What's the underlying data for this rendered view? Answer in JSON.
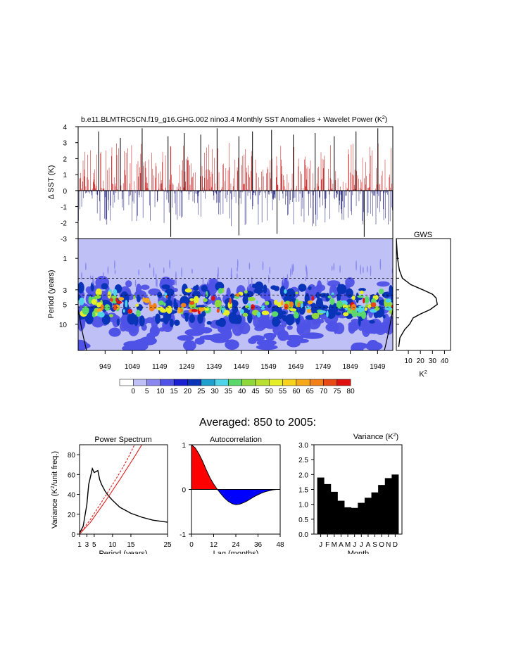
{
  "title": "b.e11.BLMTRC5CN.f19_g16.GHG.002 nino3.4 Monthly SST Anomalies + Wavelet Power (K",
  "title_sup": "2",
  "title_end": ")",
  "chart_data": [
    {
      "id": "sst-timeseries",
      "type": "bar",
      "ylabel": "Δ SST (K)",
      "ylim": [
        -3,
        4
      ],
      "yticks": [
        "4",
        "3",
        "2",
        "1",
        "0",
        "-1",
        "-2",
        "-3"
      ],
      "x_range_years": [
        850,
        2005
      ],
      "colors": {
        "positive": "#c82020",
        "negative": "#202080"
      },
      "peaks": [
        {
          "year": 925,
          "value": 3.7
        },
        {
          "year": 1005,
          "value": 3.3
        },
        {
          "year": 1085,
          "value": 3.9
        },
        {
          "year": 1180,
          "value": 3.4
        },
        {
          "year": 1240,
          "value": 3.6
        },
        {
          "year": 1300,
          "value": 3.5
        },
        {
          "year": 1360,
          "value": 3.9
        },
        {
          "year": 1440,
          "value": 3.4
        },
        {
          "year": 1490,
          "value": 3.7
        },
        {
          "year": 1560,
          "value": 3.8
        },
        {
          "year": 1640,
          "value": 3.5
        },
        {
          "year": 1720,
          "value": 3.6
        },
        {
          "year": 1790,
          "value": 3.4
        },
        {
          "year": 1870,
          "value": 3.7
        },
        {
          "year": 1950,
          "value": 3.9
        },
        {
          "year": 1190,
          "value": -2.9
        },
        {
          "year": 1440,
          "value": -2.8
        },
        {
          "year": 1580,
          "value": -2.7
        },
        {
          "year": 1900,
          "value": -2.9
        }
      ]
    },
    {
      "id": "wavelet-power",
      "type": "heatmap",
      "ylabel": "Period (years)",
      "yticks": [
        "1",
        "3",
        "5",
        "10"
      ],
      "xticks": [
        "949",
        "1049",
        "1149",
        "1249",
        "1349",
        "1449",
        "1549",
        "1649",
        "1749",
        "1849",
        "1949"
      ],
      "colorbar_labels": [
        "0",
        "5",
        "10",
        "15",
        "20",
        "25",
        "30",
        "35",
        "40",
        "45",
        "50",
        "55",
        "60",
        "65",
        "70",
        "75",
        "80"
      ],
      "colorbar_colors": [
        "#ffffff",
        "#bfc0f5",
        "#8a88f0",
        "#4f52e6",
        "#1a1fd0",
        "#0a34b8",
        "#1f9fcf",
        "#4fd3e8",
        "#5bd86a",
        "#8fd83a",
        "#b8e030",
        "#e6ee28",
        "#f7d21e",
        "#f6a81a",
        "#f2801a",
        "#e84a16",
        "#e00f10"
      ],
      "band_period_years": [
        3,
        7
      ],
      "peak_period_years": 5
    },
    {
      "id": "global-wavelet-spectrum",
      "type": "line",
      "title": "GWS",
      "xlabel": "K",
      "xlabel_sup": "2",
      "xticks": [
        "10",
        "20",
        "30",
        "40"
      ],
      "xlim": [
        0,
        45
      ],
      "points": [
        {
          "period": 0.5,
          "power": 0
        },
        {
          "period": 1,
          "power": 1
        },
        {
          "period": 1.5,
          "power": 2.5
        },
        {
          "period": 2,
          "power": 5
        },
        {
          "period": 2.5,
          "power": 12
        },
        {
          "period": 3,
          "power": 22
        },
        {
          "period": 3.5,
          "power": 30
        },
        {
          "period": 4,
          "power": 33
        },
        {
          "period": 5,
          "power": 34
        },
        {
          "period": 6,
          "power": 28
        },
        {
          "period": 7,
          "power": 20
        },
        {
          "period": 8,
          "power": 14
        },
        {
          "period": 10,
          "power": 11
        },
        {
          "period": 12,
          "power": 7
        },
        {
          "period": 16,
          "power": 3
        },
        {
          "period": 22,
          "power": 2
        }
      ]
    },
    {
      "id": "power-spectrum",
      "type": "line",
      "title": "Power Spectrum",
      "xlabel": "Period (years)",
      "ylabel": "Variance (K",
      "ylabel_sup": "2",
      "ylabel_end": "/unit freq.)",
      "xticks": [
        "1",
        "3",
        "5",
        "10",
        "15",
        "25"
      ],
      "yticks": [
        "0",
        "20",
        "40",
        "60",
        "80"
      ],
      "xlim": [
        1,
        25
      ],
      "ylim": [
        0,
        90
      ],
      "series": [
        {
          "color": "#000000",
          "points": [
            [
              1,
              1
            ],
            [
              2,
              8
            ],
            [
              3,
              30
            ],
            [
              3.5,
              50
            ],
            [
              4,
              58
            ],
            [
              4.5,
              66
            ],
            [
              5,
              62
            ],
            [
              6,
              64
            ],
            [
              6.5,
              55
            ],
            [
              7,
              50
            ],
            [
              8,
              43
            ],
            [
              9,
              38
            ],
            [
              10,
              34
            ],
            [
              12,
              27
            ],
            [
              15,
              21
            ],
            [
              18,
              17
            ],
            [
              21,
              14
            ],
            [
              25,
              12
            ]
          ]
        },
        {
          "color": "#e02020",
          "points": [
            [
              1,
              0
            ],
            [
              4,
              12
            ],
            [
              8,
              33
            ],
            [
              12,
              55
            ],
            [
              16,
              78
            ],
            [
              18,
              90
            ]
          ]
        },
        {
          "color": "#e02020",
          "points": [
            [
              1,
              0
            ],
            [
              4,
              15
            ],
            [
              8,
              38
            ],
            [
              12,
              62
            ],
            [
              14,
              75
            ],
            [
              16,
              90
            ]
          ]
        }
      ]
    },
    {
      "id": "autocorrelation",
      "type": "area",
      "title": "Autocorrelation",
      "xlabel": "Lag (months)",
      "xticks": [
        "0",
        "12",
        "24",
        "36",
        "48"
      ],
      "yticks": [
        "-1",
        "0",
        "1"
      ],
      "xlim": [
        0,
        48
      ],
      "ylim": [
        -1,
        1
      ],
      "colors": {
        "positive": "#ff0000",
        "negative": "#0000ff"
      },
      "points": [
        [
          0,
          1
        ],
        [
          2,
          0.93
        ],
        [
          4,
          0.8
        ],
        [
          6,
          0.63
        ],
        [
          8,
          0.44
        ],
        [
          10,
          0.26
        ],
        [
          12,
          0.12
        ],
        [
          14,
          0
        ],
        [
          16,
          -0.1
        ],
        [
          18,
          -0.2
        ],
        [
          20,
          -0.27
        ],
        [
          22,
          -0.32
        ],
        [
          24,
          -0.34
        ],
        [
          26,
          -0.33
        ],
        [
          28,
          -0.3
        ],
        [
          30,
          -0.26
        ],
        [
          32,
          -0.21
        ],
        [
          34,
          -0.16
        ],
        [
          36,
          -0.12
        ],
        [
          38,
          -0.08
        ],
        [
          40,
          -0.05
        ],
        [
          42,
          -0.03
        ],
        [
          44,
          -0.01
        ],
        [
          46,
          0
        ],
        [
          48,
          0
        ]
      ]
    },
    {
      "id": "monthly-variance",
      "type": "bar",
      "title": "Variance (K",
      "title_sup": "2",
      "title_end": ")",
      "xlabel": "Month",
      "categories": [
        "J",
        "F",
        "M",
        "A",
        "M",
        "J",
        "J",
        "A",
        "S",
        "O",
        "N",
        "D"
      ],
      "values": [
        1.9,
        1.68,
        1.42,
        1.12,
        0.9,
        0.88,
        1.05,
        1.22,
        1.4,
        1.65,
        1.88,
        2.0
      ],
      "yticks": [
        "0.0",
        "0.5",
        "1.0",
        "1.5",
        "2.0",
        "2.5",
        "3.0"
      ],
      "ylim": [
        0,
        3.0
      ],
      "bar_color": "#000000"
    }
  ],
  "averaged_title": "Averaged: 850 to 2005:"
}
